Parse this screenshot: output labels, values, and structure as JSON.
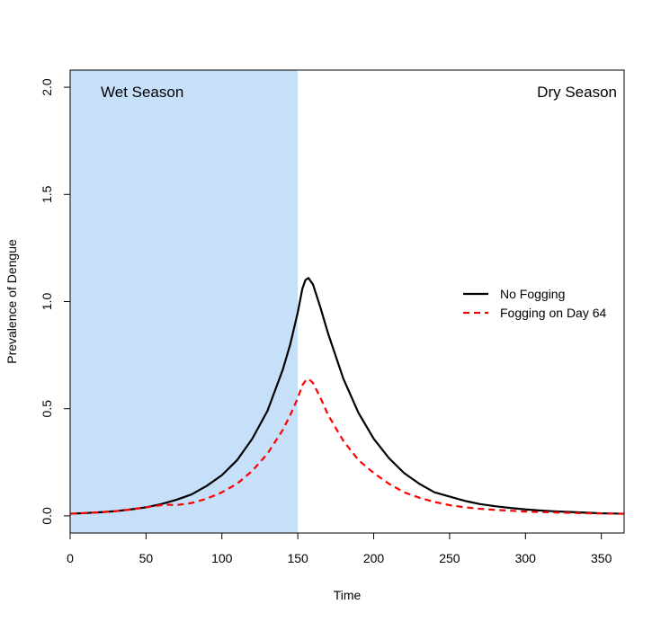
{
  "chart_data": {
    "type": "line",
    "title": "",
    "xlabel": "Time",
    "ylabel": "Prevalence of Dengue",
    "xlim": [
      0,
      365
    ],
    "ylim": [
      -0.08,
      2.08
    ],
    "x_ticks": [
      0,
      50,
      100,
      150,
      200,
      250,
      300,
      350
    ],
    "y_ticks": [
      0.0,
      0.5,
      1.0,
      1.5,
      2.0
    ],
    "x_tick_labels": [
      "0",
      "50",
      "100",
      "150",
      "200",
      "250",
      "300",
      "350"
    ],
    "y_tick_labels": [
      "0.0",
      "0.5",
      "1.0",
      "1.5",
      "2.0"
    ],
    "grid": false,
    "legend_position": "right",
    "regions": [
      {
        "label": "Wet Season",
        "x_start": 0,
        "x_end": 150,
        "color": "#C6E0FA"
      },
      {
        "label": "Dry Season",
        "x_start": 150,
        "x_end": 365,
        "color": "#FFFFFF"
      }
    ],
    "series": [
      {
        "name": "No Fogging",
        "color": "#000000",
        "dash": "solid",
        "x": [
          0,
          10,
          20,
          30,
          40,
          50,
          60,
          70,
          80,
          90,
          100,
          110,
          120,
          130,
          140,
          145,
          150,
          153,
          155,
          157,
          160,
          165,
          170,
          180,
          190,
          200,
          210,
          220,
          230,
          240,
          250,
          260,
          270,
          280,
          290,
          300,
          310,
          320,
          330,
          340,
          350,
          365
        ],
        "y": [
          0.01,
          0.013,
          0.017,
          0.022,
          0.03,
          0.04,
          0.055,
          0.075,
          0.1,
          0.14,
          0.19,
          0.26,
          0.36,
          0.49,
          0.68,
          0.8,
          0.95,
          1.06,
          1.1,
          1.11,
          1.08,
          0.97,
          0.85,
          0.64,
          0.48,
          0.36,
          0.27,
          0.2,
          0.15,
          0.11,
          0.09,
          0.07,
          0.055,
          0.045,
          0.037,
          0.03,
          0.025,
          0.021,
          0.018,
          0.015,
          0.012,
          0.01
        ]
      },
      {
        "name": "Fogging on Day 64",
        "color": "#FF0000",
        "dash": "dashed",
        "x": [
          0,
          10,
          20,
          30,
          40,
          50,
          60,
          64,
          70,
          80,
          90,
          100,
          110,
          120,
          130,
          140,
          145,
          150,
          153,
          155,
          157,
          160,
          165,
          170,
          180,
          190,
          200,
          210,
          220,
          230,
          240,
          250,
          260,
          270,
          280,
          290,
          300,
          310,
          320,
          330,
          340,
          350,
          365
        ],
        "y": [
          0.01,
          0.013,
          0.017,
          0.022,
          0.03,
          0.04,
          0.05,
          0.052,
          0.05,
          0.06,
          0.08,
          0.11,
          0.15,
          0.21,
          0.29,
          0.4,
          0.47,
          0.55,
          0.61,
          0.63,
          0.64,
          0.62,
          0.55,
          0.47,
          0.35,
          0.26,
          0.2,
          0.15,
          0.11,
          0.085,
          0.065,
          0.05,
          0.04,
          0.033,
          0.028,
          0.024,
          0.02,
          0.018,
          0.016,
          0.014,
          0.012,
          0.011,
          0.01
        ]
      }
    ]
  }
}
